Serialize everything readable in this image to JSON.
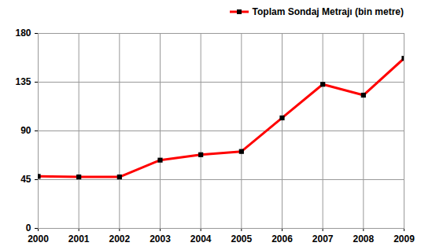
{
  "chart_data": {
    "type": "line",
    "x": [
      2000,
      2001,
      2002,
      2003,
      2004,
      2005,
      2006,
      2007,
      2008,
      2009
    ],
    "series": [
      {
        "name": "Toplam Sondaj Metrajı (bin metre)",
        "color": "#ff0000",
        "marker": "square",
        "values": [
          48,
          47.5,
          47.5,
          63,
          68,
          71,
          102,
          133,
          123,
          157
        ]
      }
    ],
    "xlim": [
      2000,
      2009
    ],
    "xticks": [
      2000,
      2001,
      2002,
      2003,
      2004,
      2005,
      2006,
      2007,
      2008,
      2009
    ],
    "ylim": [
      0,
      180
    ],
    "yticks": [
      0,
      45,
      90,
      135,
      180
    ],
    "grid": true,
    "legend": "top-right"
  }
}
